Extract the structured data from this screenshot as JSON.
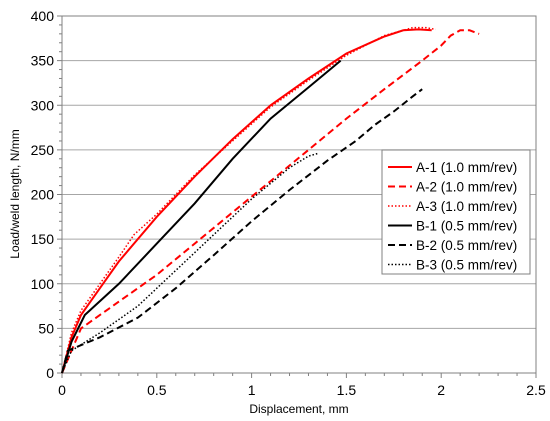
{
  "chart_data": {
    "type": "line",
    "title": "",
    "xlabel": "Displacement, mm",
    "ylabel": "Load/weld length, N/mm",
    "xlim": [
      0,
      2.5
    ],
    "ylim": [
      0,
      400
    ],
    "xticks": [
      0,
      0.5,
      1,
      1.5,
      2,
      2.5
    ],
    "yticks": [
      0,
      50,
      100,
      150,
      200,
      250,
      300,
      350,
      400
    ],
    "xtick_labels": [
      "0",
      "0.5",
      "1",
      "1.5",
      "2",
      "2.5"
    ],
    "ytick_labels": [
      "0",
      "50",
      "100",
      "150",
      "200",
      "250",
      "300",
      "350",
      "400"
    ],
    "grid": "horizontal",
    "legend_position": "right",
    "series": [
      {
        "name": "A-1 (1.0 mm/rev)",
        "color": "#ff0000",
        "dash": "solid",
        "x": [
          0,
          0.05,
          0.1,
          0.2,
          0.3,
          0.4,
          0.5,
          0.7,
          0.9,
          1.1,
          1.3,
          1.5,
          1.7,
          1.8,
          1.88,
          1.95
        ],
        "y": [
          0,
          40,
          65,
          95,
          125,
          150,
          175,
          220,
          262,
          300,
          330,
          358,
          377,
          384,
          385,
          384
        ]
      },
      {
        "name": "A-2 (1.0 mm/rev)",
        "color": "#ff0000",
        "dash": "dashed",
        "x": [
          0,
          0.1,
          0.3,
          0.5,
          0.7,
          0.9,
          1.1,
          1.3,
          1.5,
          1.7,
          1.9,
          2.0,
          2.05,
          2.1,
          2.15,
          2.2
        ],
        "y": [
          0,
          50,
          80,
          110,
          145,
          180,
          215,
          250,
          285,
          318,
          350,
          367,
          378,
          384,
          384,
          380
        ]
      },
      {
        "name": "A-3 (1.0 mm/rev)",
        "color": "#ff0000",
        "dash": "dotted",
        "x": [
          0,
          0.05,
          0.1,
          0.2,
          0.3,
          0.38,
          0.5,
          0.7,
          0.9,
          1.1,
          1.3,
          1.5,
          1.7,
          1.85,
          1.92,
          1.97
        ],
        "y": [
          0,
          45,
          70,
          100,
          130,
          155,
          178,
          222,
          260,
          298,
          328,
          356,
          378,
          387,
          387,
          385
        ]
      },
      {
        "name": "B-1 (0.5 mm/rev)",
        "color": "#000000",
        "dash": "solid",
        "x": [
          0,
          0.05,
          0.12,
          0.3,
          0.5,
          0.7,
          0.9,
          1.1,
          1.3,
          1.47
        ],
        "y": [
          0,
          35,
          65,
          100,
          145,
          190,
          240,
          285,
          320,
          350
        ]
      },
      {
        "name": "B-2 (0.5 mm/rev)",
        "color": "#000000",
        "dash": "dashed",
        "x": [
          0,
          0.03,
          0.2,
          0.4,
          0.6,
          0.8,
          1.0,
          1.2,
          1.4,
          1.55,
          1.65,
          1.75,
          1.85,
          1.9
        ],
        "y": [
          0,
          25,
          40,
          62,
          95,
          132,
          170,
          205,
          238,
          260,
          278,
          293,
          310,
          318
        ]
      },
      {
        "name": "B-3 (0.5 mm/rev)",
        "color": "#000000",
        "dash": "dotted",
        "x": [
          0,
          0.05,
          0.2,
          0.4,
          0.6,
          0.8,
          1.0,
          1.2,
          1.3,
          1.35
        ],
        "y": [
          0,
          25,
          45,
          75,
          115,
          155,
          195,
          230,
          243,
          246
        ]
      }
    ]
  }
}
